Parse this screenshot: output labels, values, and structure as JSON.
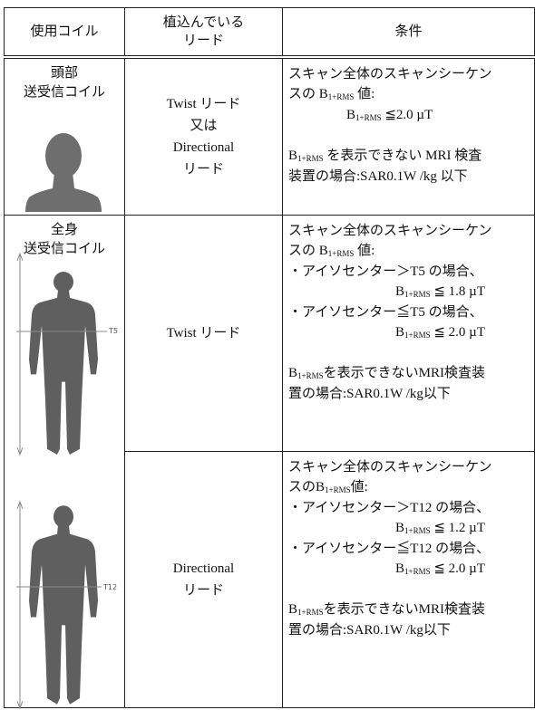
{
  "header": [
    "使用コイル",
    [
      "植込んでいる",
      "リード"
    ],
    "条件"
  ],
  "rows": [
    {
      "coil": [
        "頭部",
        "送受信コイル"
      ],
      "lead": [
        "Twist リード",
        "又は",
        "Directional",
        "リード"
      ],
      "condition": [
        [
          [
            "スキャン全体のスキャンシーケン"
          ],
          [
            "スの B",
            "1+RMS",
            " 値:"
          ],
          [
            "B",
            "1+RMS",
            " ≦2.0 µT"
          ]
        ],
        [
          [
            "B",
            "1+RMS",
            " を表示できない MRI 検査"
          ],
          [
            "装置の場合:SAR0.1W /kg 以下"
          ]
        ]
      ]
    },
    {
      "coil": [
        "全身",
        "送受信コイル"
      ],
      "figure_label": "T5",
      "lead": [
        "Twist リード"
      ],
      "condition": [
        [
          [
            "スキャン全体のスキャンシーケン"
          ],
          [
            "スの B",
            "1+RMS",
            " 値:"
          ],
          [
            "・アイソセンター＞T5 の場合、"
          ],
          [
            "B",
            "1+RMS",
            " ≦ 1.8 µT"
          ],
          [
            "・アイソセンター≦T5 の場合、"
          ],
          [
            "B",
            "1+RMS",
            " ≦ 2.0 µT"
          ]
        ],
        [
          [
            "B",
            "1+RMS",
            "を表示できないMRI検査装"
          ],
          [
            "置の場合:SAR0.1W /kg以下"
          ]
        ]
      ]
    },
    {
      "figure_label": "T12",
      "lead": [
        "Directional",
        "リード"
      ],
      "condition": [
        [
          [
            "スキャン全体のスキャンシーケン"
          ],
          [
            "スのB",
            "1+RMS",
            "値:"
          ],
          [
            "・アイソセンター＞T12 の場合、"
          ],
          [
            "B",
            "1+RMS",
            " ≦ 1.2 µT"
          ],
          [
            "・アイソセンター≦T12 の場合、"
          ],
          [
            "B",
            "1+RMS",
            " ≦ 2.0 µT"
          ]
        ],
        [
          [
            "B",
            "1+RMS",
            "を表示できないMRI検査装"
          ],
          [
            "置の場合:SAR0.1W /kg以下"
          ]
        ]
      ]
    }
  ]
}
